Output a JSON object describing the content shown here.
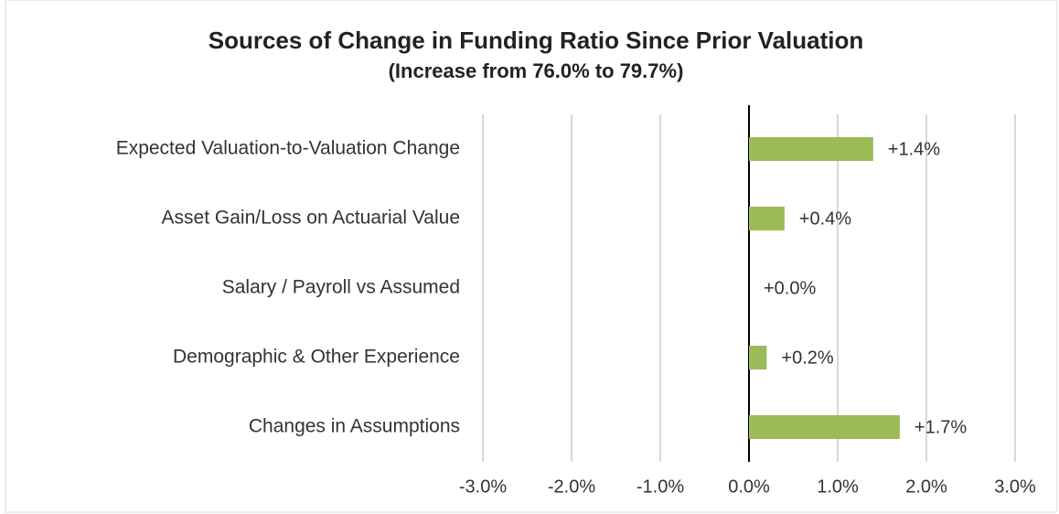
{
  "chart_data": {
    "type": "hbar",
    "title": "Sources of Change in Funding Ratio Since Prior Valuation",
    "subtitle": "(Increase from 76.0% to 79.7%)",
    "categories": [
      "Expected Valuation-to-Valuation Change",
      "Asset Gain/Loss on Actuarial Value",
      "Salary / Payroll vs Assumed",
      "Demographic & Other Experience",
      "Changes in Assumptions"
    ],
    "values": [
      1.4,
      0.4,
      0.0,
      0.2,
      1.7
    ],
    "value_labels": [
      "+1.4%",
      "+0.4%",
      "+0.0%",
      "+0.2%",
      "+1.7%"
    ],
    "color": "#9bbb59",
    "xlim": [
      -3,
      3
    ],
    "xticks": [
      {
        "value": -3,
        "label": "-3.0%"
      },
      {
        "value": -2,
        "label": "-2.0%"
      },
      {
        "value": -1,
        "label": "-1.0%"
      },
      {
        "value": 0,
        "label": "0.0%"
      },
      {
        "value": 1,
        "label": "1.0%"
      },
      {
        "value": 2,
        "label": "2.0%"
      },
      {
        "value": 3,
        "label": "3.0%"
      }
    ],
    "grid": true
  }
}
